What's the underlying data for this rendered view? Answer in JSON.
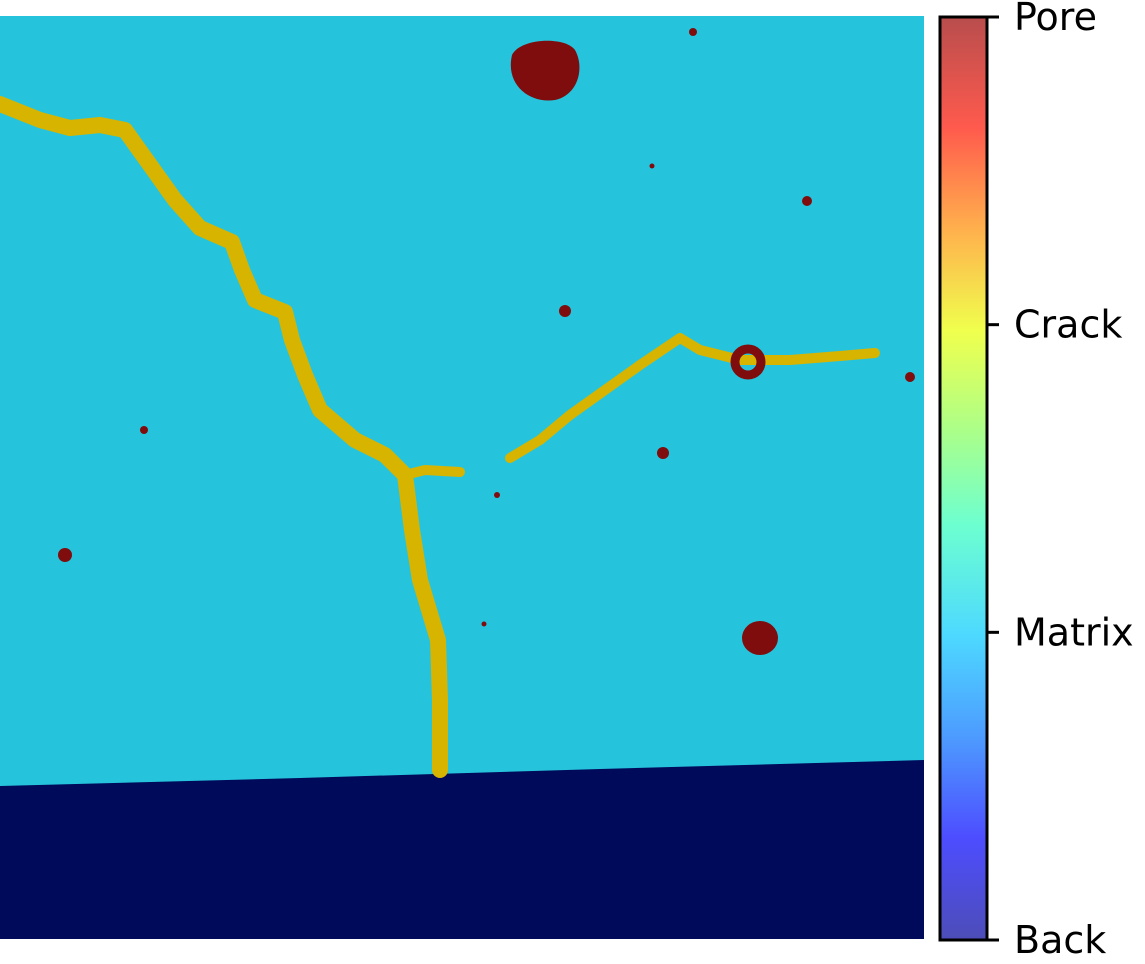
{
  "chart_data": {
    "type": "heatmap",
    "title": "",
    "xlabel": "",
    "ylabel": "",
    "colormap": "jet",
    "axes_visible": false,
    "classes": [
      {
        "label": "Back",
        "value": 0,
        "color": "#000080"
      },
      {
        "label": "Matrix",
        "value": 1,
        "color": "#26c4dc"
      },
      {
        "label": "Crack",
        "value": 2,
        "color": "#d6b400"
      },
      {
        "label": "Pore",
        "value": 3,
        "color": "#7f0d0d"
      }
    ],
    "colorbar": {
      "position": "right",
      "ticks": [
        "Back",
        "Matrix",
        "Crack",
        "Pore"
      ],
      "range": [
        0,
        3
      ]
    }
  }
}
